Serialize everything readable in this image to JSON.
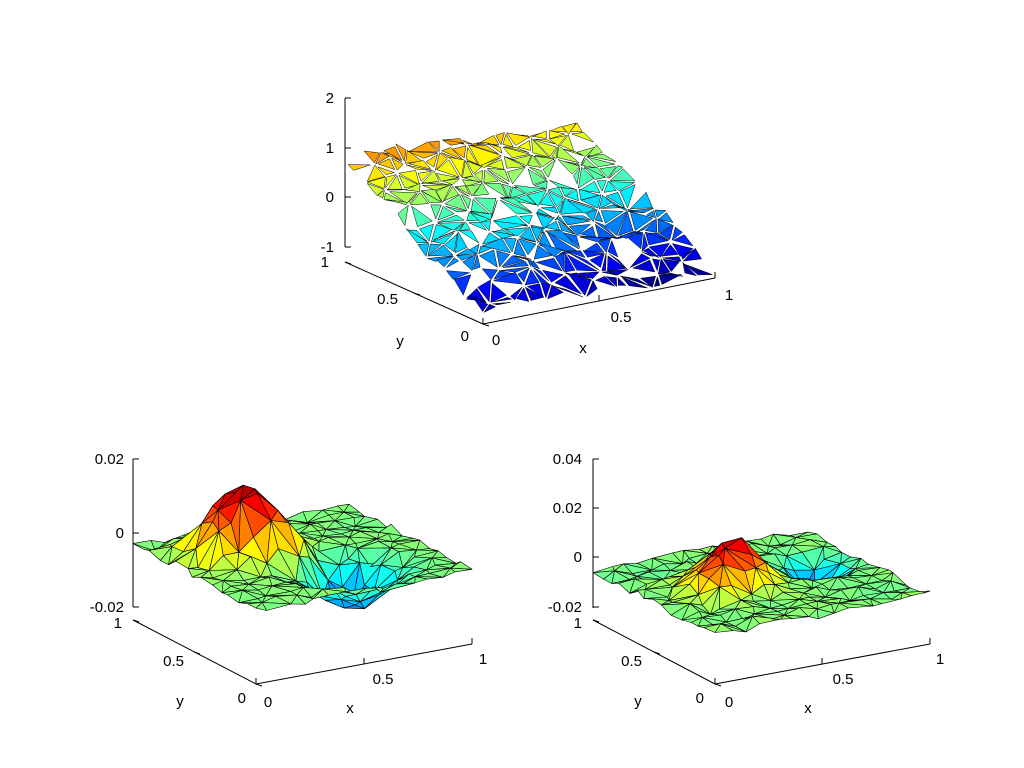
{
  "chart_data": [
    {
      "type": "surface",
      "panel": "top",
      "surface_style": "fragmented-triangles",
      "colormap": "jet",
      "grid": false,
      "xlabel": "x",
      "ylabel": "y",
      "xlim": [
        0,
        1
      ],
      "ylim": [
        0,
        1
      ],
      "zlim": [
        -1,
        2
      ],
      "x_ticks": [
        "0",
        "0.5",
        "1"
      ],
      "y_ticks": [
        "0",
        "0.5",
        "1"
      ],
      "z_ticks": [
        "-1",
        "0",
        "1",
        "2"
      ],
      "z_range_shown": [
        -0.9,
        1.8
      ]
    },
    {
      "type": "surface",
      "panel": "bottom-left",
      "surface_style": "triangulated-mesh",
      "colormap": "jet",
      "grid": false,
      "xlabel": "x",
      "ylabel": "y",
      "xlim": [
        0,
        1
      ],
      "ylim": [
        0,
        1
      ],
      "zlim": [
        -0.02,
        0.02
      ],
      "x_ticks": [
        "0",
        "0.5",
        "1"
      ],
      "y_ticks": [
        "0",
        "0.5",
        "1"
      ],
      "z_ticks": [
        "-0.02",
        "0",
        "0.02"
      ],
      "peaks": [
        {
          "x": 0.3,
          "y": 0.65,
          "z": 0.02
        },
        {
          "x": 0.6,
          "y": 0.3,
          "z": -0.012
        }
      ]
    },
    {
      "type": "surface",
      "panel": "bottom-right",
      "surface_style": "triangulated-mesh",
      "colormap": "jet",
      "grid": false,
      "xlabel": "x",
      "ylabel": "y",
      "xlim": [
        0,
        1
      ],
      "ylim": [
        0,
        1
      ],
      "zlim": [
        -0.02,
        0.04
      ],
      "x_ticks": [
        "0",
        "0.5",
        "1"
      ],
      "y_ticks": [
        "0",
        "0.5",
        "1"
      ],
      "z_ticks": [
        "-0.02",
        "0",
        "0.02",
        "0.04"
      ],
      "peaks": [
        {
          "x": 0.4,
          "y": 0.55,
          "z": 0.018
        },
        {
          "x": 0.8,
          "y": 0.6,
          "z": -0.012
        }
      ]
    }
  ]
}
